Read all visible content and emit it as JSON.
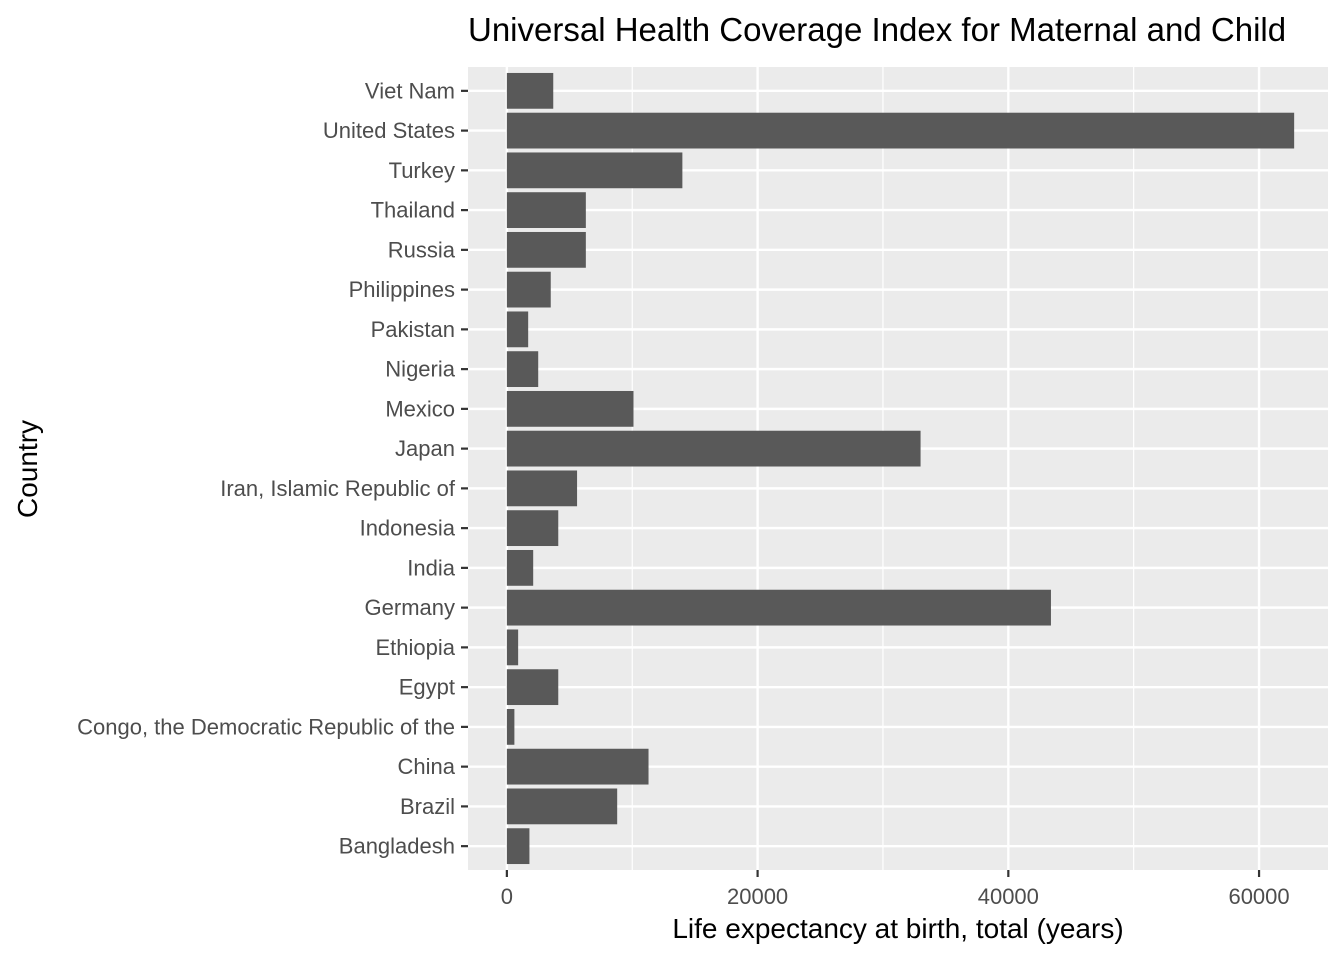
{
  "chart_data": {
    "type": "bar",
    "orientation": "horizontal",
    "title": "Universal Health Coverage Index for Maternal and Child",
    "xlabel": "Life expectancy at birth, total (years)",
    "ylabel": "Country",
    "categories": [
      "Bangladesh",
      "Brazil",
      "China",
      "Congo, the Democratic Republic of the",
      "Egypt",
      "Ethiopia",
      "Germany",
      "India",
      "Indonesia",
      "Iran, Islamic Republic of",
      "Japan",
      "Mexico",
      "Nigeria",
      "Pakistan",
      "Philippines",
      "Russia",
      "Thailand",
      "Turkey",
      "United States",
      "Viet Nam"
    ],
    "values": [
      1800,
      8800,
      11300,
      600,
      4100,
      900,
      43400,
      2100,
      4100,
      5600,
      33000,
      10100,
      2500,
      1700,
      3500,
      6300,
      6300,
      14000,
      62800,
      3700
    ],
    "xlim": [
      -3100,
      65500
    ],
    "xticks": [
      0,
      20000,
      40000,
      60000
    ],
    "xtick_labels": [
      "0",
      "20000",
      "40000",
      "60000"
    ],
    "grid": true,
    "colors": {
      "bar": "#595959",
      "panel": "#ebebeb",
      "grid": "#ffffff",
      "tick_text": "#4d4d4d"
    }
  }
}
